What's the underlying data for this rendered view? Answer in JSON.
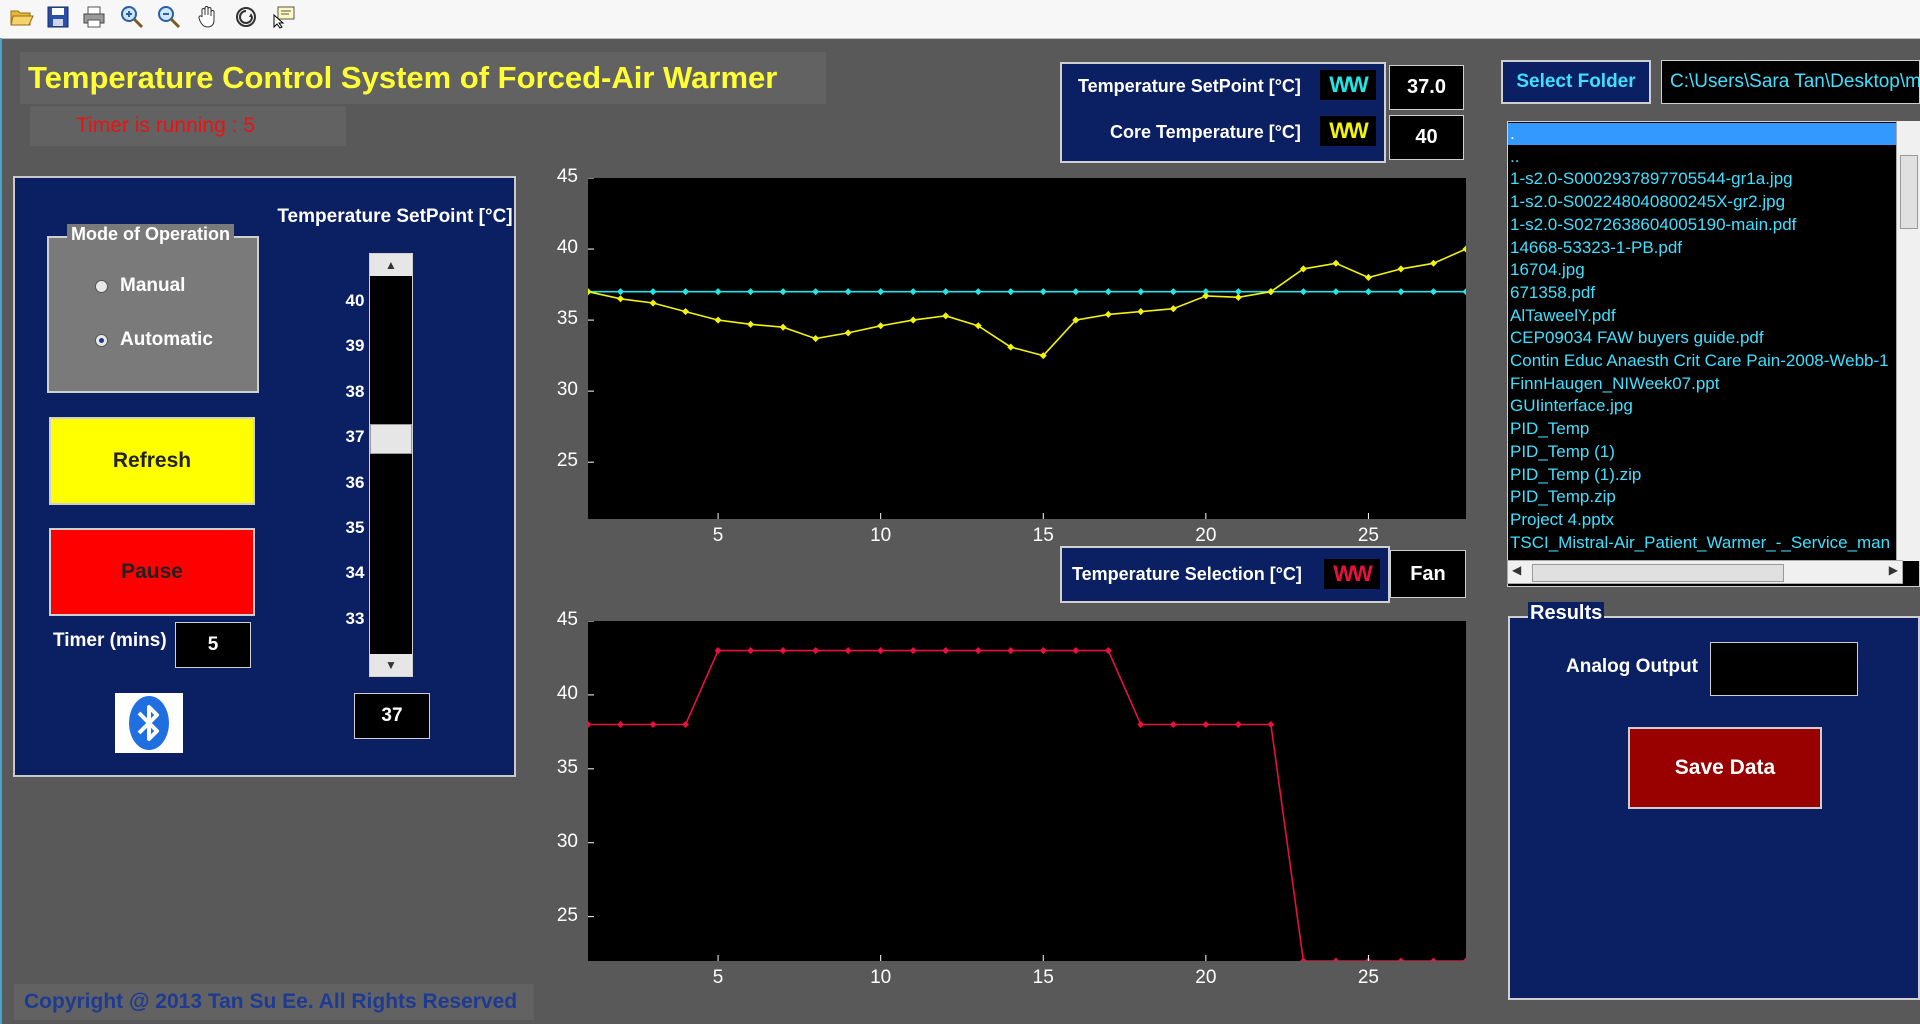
{
  "toolbar": {
    "icons": [
      "folder-open-icon",
      "save-icon",
      "print-icon",
      "zoom-in-icon",
      "zoom-out-icon",
      "pan-hand-icon",
      "rotate-3d-icon",
      "data-cursor-icon"
    ]
  },
  "app": {
    "title": "Temperature Control System of Forced-Air Warmer",
    "timer_status": "Timer is running : 5",
    "copyright": "Copyright @ 2013 Tan Su Ee. All Rights Reserved"
  },
  "control": {
    "mode_legend": "Mode of Operation",
    "mode_options": [
      {
        "label": "Manual",
        "checked": false
      },
      {
        "label": "Automatic",
        "checked": true
      }
    ],
    "refresh_label": "Refresh",
    "pause_label": "Pause",
    "timer_label": "Timer (mins)",
    "timer_value": "5",
    "setpoint_label": "Temperature SetPoint [°C]",
    "slider_ticks": [
      "40",
      "39",
      "38",
      "37",
      "36",
      "35",
      "34",
      "33"
    ],
    "slider_value": 37,
    "slider_range": [
      33,
      40
    ],
    "setpoint_value": "37",
    "bluetooth_icon": "bluetooth-icon"
  },
  "legend_top": {
    "setpoint_label": "Temperature SetPoint [°C]",
    "setpoint_value": "37.0",
    "core_label": "Core Temperature [°C]",
    "core_value": "40",
    "wave_text": "WW"
  },
  "legend_bottom": {
    "selection_label": "Temperature Selection [°C]",
    "selection_value": "Fan",
    "wave_text": "WW"
  },
  "colors": {
    "panel": "#0b1f63",
    "setpoint_line": "#22e5e5",
    "core_line": "#f2f20a",
    "selection_line": "#e8103c"
  },
  "chart_data": [
    {
      "type": "line",
      "xlim": [
        1,
        28
      ],
      "ylim": [
        21,
        45
      ],
      "xticks": [
        5,
        10,
        15,
        20,
        25
      ],
      "yticks": [
        25,
        30,
        35,
        40,
        45
      ],
      "grid": false,
      "series": [
        {
          "color": "#22e5e5",
          "x": [
            1,
            2,
            3,
            4,
            5,
            6,
            7,
            8,
            9,
            10,
            11,
            12,
            13,
            14,
            15,
            16,
            17,
            18,
            19,
            20,
            21,
            22,
            23,
            24,
            25,
            26,
            27,
            28
          ],
          "values": [
            37,
            37,
            37,
            37,
            37,
            37,
            37,
            37,
            37,
            37,
            37,
            37,
            37,
            37,
            37,
            37,
            37,
            37,
            37,
            37,
            37,
            37,
            37,
            37,
            37,
            37,
            37,
            37
          ]
        },
        {
          "color": "#f2f20a",
          "x": [
            1,
            2,
            3,
            4,
            5,
            6,
            7,
            8,
            9,
            10,
            11,
            12,
            13,
            14,
            15,
            16,
            17,
            18,
            19,
            20,
            21,
            22,
            23,
            24,
            25,
            26,
            27,
            28
          ],
          "values": [
            37,
            36.5,
            36.2,
            35.6,
            35,
            34.7,
            34.5,
            33.7,
            34.1,
            34.6,
            35,
            35.3,
            34.6,
            33.1,
            32.5,
            35,
            35.4,
            35.6,
            35.8,
            36.7,
            36.6,
            37,
            38.6,
            39,
            38,
            38.6,
            39,
            40
          ]
        }
      ]
    },
    {
      "type": "line",
      "xlim": [
        1,
        28
      ],
      "ylim": [
        22,
        45
      ],
      "xticks": [
        5,
        10,
        15,
        20,
        25
      ],
      "yticks": [
        25,
        30,
        35,
        40,
        45
      ],
      "grid": false,
      "series": [
        {
          "color": "#e8103c",
          "x": [
            1,
            2,
            3,
            4,
            5,
            6,
            7,
            8,
            9,
            10,
            11,
            12,
            13,
            14,
            15,
            16,
            17,
            18,
            19,
            20,
            21,
            22,
            23,
            24,
            25,
            26,
            27,
            28
          ],
          "values": [
            38,
            38,
            38,
            38,
            43,
            43,
            43,
            43,
            43,
            43,
            43,
            43,
            43,
            43,
            43,
            43,
            43,
            38,
            38,
            38,
            38,
            38,
            22,
            22,
            22,
            22,
            22,
            22
          ]
        }
      ]
    }
  ],
  "files": {
    "select_button": "Select Folder",
    "path": "C:\\Users\\Sara Tan\\Desktop\\m",
    "items": [
      ".",
      "..",
      "1-s2.0-S0002937897705544-gr1a.jpg",
      "1-s2.0-S002248040800245X-gr2.jpg",
      "1-s2.0-S0272638604005190-main.pdf",
      "14668-53323-1-PB.pdf",
      "16704.jpg",
      "671358.pdf",
      "AlTaweelY.pdf",
      "CEP09034 FAW buyers guide.pdf",
      "Contin Educ Anaesth Crit Care Pain-2008-Webb-1",
      "FinnHaugen_NIWeek07.ppt",
      "GUIinterface.jpg",
      "PID_Temp",
      "PID_Temp (1)",
      "PID_Temp (1).zip",
      "PID_Temp.zip",
      "Project 4.pptx",
      "TSCI_Mistral-Air_Patient_Warmer_-_Service_man"
    ],
    "selected_index": 0
  },
  "results": {
    "legend": "Results",
    "analog_label": "Analog Output",
    "analog_value": "",
    "save_label": "Save Data"
  }
}
